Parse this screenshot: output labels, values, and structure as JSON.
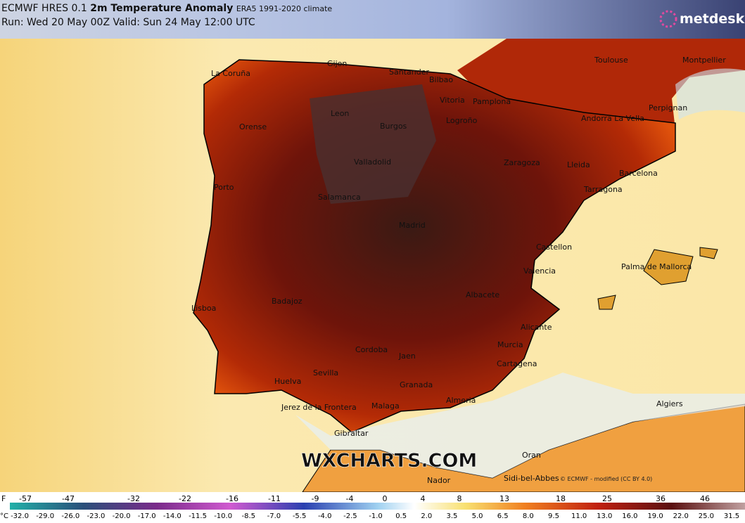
{
  "header": {
    "model": "ECMWF HRES 0.1",
    "title": "2m Temperature Anomaly",
    "climate": "ERA5 1991-2020 climate",
    "run": "Run: Wed 20 May 00Z Valid: Sun 24 May 12:00 UTC",
    "logo": "metdesk"
  },
  "watermark": "WXCHARTS.COM",
  "credit": "© ECMWF - modified (CC BY 4.0)",
  "cities": [
    "La Coruña",
    "Gijon",
    "Santander",
    "Bilbao",
    "Toulouse",
    "Montpellier",
    "Vitoria",
    "Pamplona",
    "Leon",
    "Burgos",
    "Logroño",
    "Orense",
    "Andorra La Vella",
    "Perpignan",
    "Valladolid",
    "Zaragoza",
    "Lleida",
    "Barcelona",
    "Porto",
    "Salamanca",
    "Tarragona",
    "Madrid",
    "Castellon",
    "Valencia",
    "Palma de Mallorca",
    "Lisboa",
    "Badajoz",
    "Albacete",
    "Alicante",
    "Cordoba",
    "Jaen",
    "Murcia",
    "Cartagena",
    "Sevilla",
    "Huelva",
    "Granada",
    "Jerez de la Frontera",
    "Malaga",
    "Almeria",
    "Algiers",
    "Gibraltar",
    "Oran",
    "Nador",
    "Sidi-bel-Abbes"
  ],
  "legend": {
    "f_unit": "F",
    "c_unit": "°C",
    "f_labels": [
      "-57",
      "-47",
      "-32",
      "-22",
      "-16",
      "-11",
      "-9",
      "-4",
      "0",
      "4",
      "8",
      "13",
      "18",
      "25",
      "36",
      "46"
    ],
    "c_labels": [
      "-32.0",
      "-29.0",
      "-26.0",
      "-23.0",
      "-20.0",
      "-17.0",
      "-14.0",
      "-11.5",
      "-10.0",
      "-8.5",
      "-7.0",
      "-5.5",
      "-4.0",
      "-2.5",
      "-1.0",
      "0.5",
      "2.0",
      "3.5",
      "5.0",
      "6.5",
      "8.0",
      "9.5",
      "11.0",
      "13.0",
      "16.0",
      "19.0",
      "22.0",
      "25.0",
      "31.5"
    ]
  }
}
